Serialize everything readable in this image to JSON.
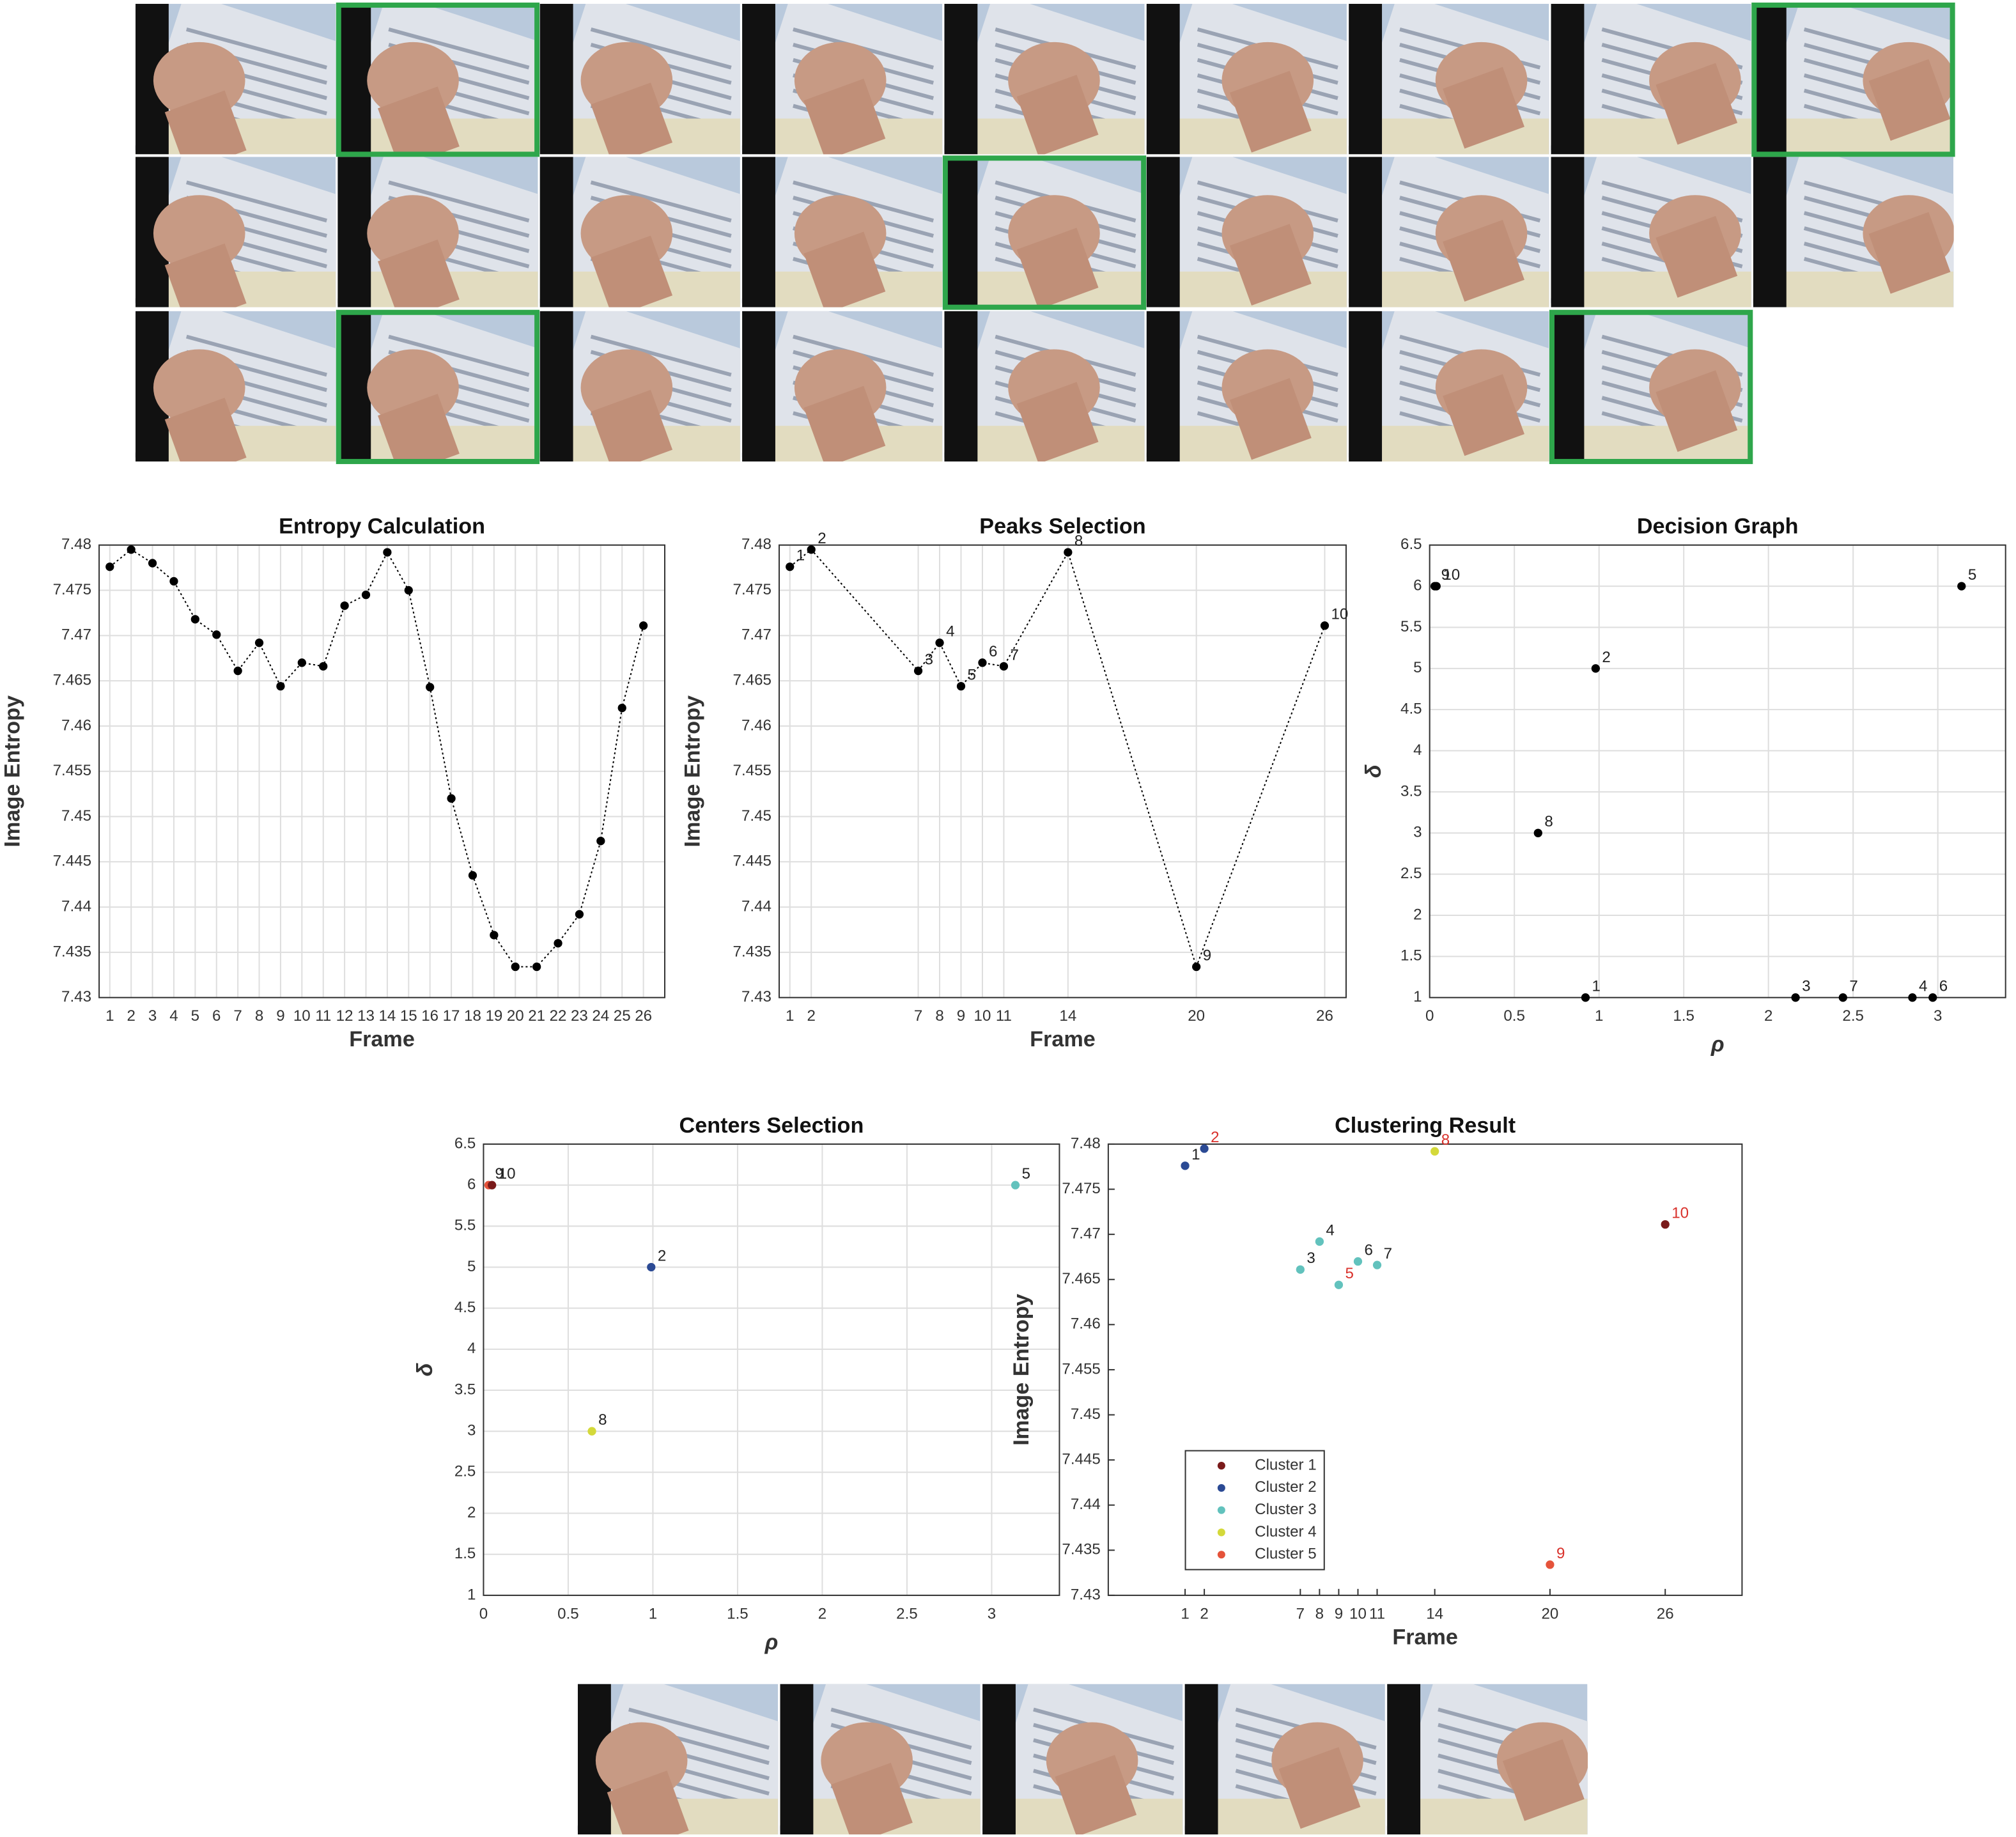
{
  "chart_data": [
    {
      "type": "line",
      "title": "Entropy Calculation",
      "x_label": "Frame",
      "y_label": "Image Entropy",
      "xlim": [
        0.5,
        27
      ],
      "ylim": [
        7.43,
        7.48
      ],
      "xticks": [
        1,
        2,
        3,
        4,
        5,
        6,
        7,
        8,
        9,
        10,
        11,
        12,
        13,
        14,
        15,
        16,
        17,
        18,
        19,
        20,
        21,
        22,
        23,
        24,
        25,
        26
      ],
      "yticks": [
        7.43,
        7.435,
        7.44,
        7.445,
        7.45,
        7.455,
        7.46,
        7.465,
        7.47,
        7.475,
        7.48
      ],
      "grid": true,
      "line_style": "dotted",
      "series": [
        {
          "color": "#000000",
          "x": [
            1,
            2,
            3,
            4,
            5,
            6,
            7,
            8,
            9,
            10,
            11,
            12,
            13,
            14,
            15,
            16,
            17,
            18,
            19,
            20,
            21,
            22,
            23,
            24,
            25,
            26
          ],
          "values": [
            7.4776,
            7.4795,
            7.478,
            7.476,
            7.4718,
            7.4701,
            7.4661,
            7.4692,
            7.4644,
            7.467,
            7.4666,
            7.4733,
            7.4745,
            7.4792,
            7.475,
            7.4643,
            7.452,
            7.4435,
            7.4369,
            7.4334,
            7.4334,
            7.436,
            7.4392,
            7.4473,
            7.462,
            7.4711
          ]
        }
      ]
    },
    {
      "type": "line",
      "title": "Peaks Selection",
      "x_label": "Frame",
      "y_label": "Image Entropy",
      "xlim": [
        0.5,
        27
      ],
      "ylim": [
        7.43,
        7.48
      ],
      "xticks": [
        1,
        2,
        7,
        8,
        9,
        10,
        11,
        14,
        20,
        26
      ],
      "yticks": [
        7.43,
        7.435,
        7.44,
        7.445,
        7.45,
        7.455,
        7.46,
        7.465,
        7.47,
        7.475,
        7.48
      ],
      "grid": true,
      "line_style": "dotted",
      "series": [
        {
          "color": "#000000",
          "x": [
            1,
            2,
            7,
            8,
            9,
            10,
            11,
            14,
            20,
            26
          ],
          "values": [
            7.4776,
            7.4795,
            7.4661,
            7.4692,
            7.4644,
            7.467,
            7.4666,
            7.4792,
            7.4334,
            7.4711
          ],
          "labels": [
            "1",
            "2",
            "3",
            "4",
            "5",
            "6",
            "7",
            "8",
            "9",
            "10"
          ]
        }
      ]
    },
    {
      "type": "scatter",
      "title": "Decision Graph",
      "x_label": "ρ",
      "y_label": "δ",
      "xlim": [
        0,
        3.4
      ],
      "ylim": [
        1,
        6.5
      ],
      "xticks": [
        0,
        0.5,
        1,
        1.5,
        2,
        2.5,
        3
      ],
      "yticks": [
        1,
        1.5,
        2,
        2.5,
        3,
        3.5,
        4,
        4.5,
        5,
        5.5,
        6,
        6.5
      ],
      "grid": true,
      "series": [
        {
          "color": "#000000",
          "x": [
            0.92,
            0.98,
            2.16,
            2.85,
            3.14,
            2.97,
            2.44,
            0.64,
            0.03,
            0.04
          ],
          "values": [
            1,
            5,
            1,
            1,
            6,
            1,
            1,
            3,
            6,
            6
          ],
          "labels": [
            "1",
            "2",
            "3",
            "4",
            "5",
            "6",
            "7",
            "8",
            "9",
            "10"
          ]
        }
      ]
    },
    {
      "type": "scatter",
      "title": "Centers Selection",
      "x_label": "ρ",
      "y_label": "δ",
      "xlim": [
        0,
        3.4
      ],
      "ylim": [
        1,
        6.5
      ],
      "xticks": [
        0,
        0.5,
        1,
        1.5,
        2,
        2.5,
        3
      ],
      "yticks": [
        1,
        1.5,
        2,
        2.5,
        3,
        3.5,
        4,
        4.5,
        5,
        5.5,
        6,
        6.5
      ],
      "grid": true,
      "series": [
        {
          "color": "#e5533a",
          "x": [
            0.03
          ],
          "values": [
            6
          ],
          "labels": [
            "9"
          ]
        },
        {
          "color": "#7a1a1a",
          "x": [
            0.05
          ],
          "values": [
            6
          ],
          "labels": [
            "10"
          ]
        },
        {
          "color": "#2b4a94",
          "x": [
            0.99
          ],
          "values": [
            5
          ],
          "labels": [
            "2"
          ]
        },
        {
          "color": "#62c2bd",
          "x": [
            3.14
          ],
          "values": [
            6
          ],
          "labels": [
            "5"
          ]
        },
        {
          "color": "#d4d93a",
          "x": [
            0.64
          ],
          "values": [
            3
          ],
          "labels": [
            "8"
          ]
        }
      ]
    },
    {
      "type": "scatter",
      "title": "Clustering Result",
      "x_label": "Frame",
      "y_label": "Image Entropy",
      "xlim": [
        -3,
        30
      ],
      "ylim": [
        7.43,
        7.48
      ],
      "xticks": [
        1,
        2,
        7,
        8,
        9,
        10,
        11,
        14,
        20,
        26
      ],
      "yticks": [
        7.43,
        7.435,
        7.44,
        7.445,
        7.45,
        7.455,
        7.46,
        7.465,
        7.47,
        7.475,
        7.48
      ],
      "grid": false,
      "legend": "southwest",
      "series": [
        {
          "name": "Cluster 1",
          "color": "#7a1a1a",
          "x": [
            26
          ],
          "values": [
            7.4711
          ],
          "labels": [
            "10"
          ],
          "label_colors": [
            "#d9312b"
          ]
        },
        {
          "name": "Cluster 2",
          "color": "#2b4a94",
          "x": [
            1,
            2
          ],
          "values": [
            7.4776,
            7.4795
          ],
          "labels": [
            "1",
            "2"
          ],
          "label_colors": [
            "#222222",
            "#d9312b"
          ]
        },
        {
          "name": "Cluster 3",
          "color": "#62c2bd",
          "x": [
            7,
            8,
            9,
            10,
            11
          ],
          "values": [
            7.4661,
            7.4692,
            7.4644,
            7.467,
            7.4666
          ],
          "labels": [
            "3",
            "4",
            "5",
            "6",
            "7"
          ],
          "label_colors": [
            "#222222",
            "#222222",
            "#d9312b",
            "#222222",
            "#222222"
          ]
        },
        {
          "name": "Cluster 4",
          "color": "#d4d93a",
          "x": [
            14
          ],
          "values": [
            7.4792
          ],
          "labels": [
            "8"
          ],
          "label_colors": [
            "#d9312b"
          ]
        },
        {
          "name": "Cluster 5",
          "color": "#e5533a",
          "x": [
            20
          ],
          "values": [
            7.4334
          ],
          "labels": [
            "9"
          ],
          "label_colors": [
            "#d9312b"
          ]
        }
      ]
    }
  ]
}
